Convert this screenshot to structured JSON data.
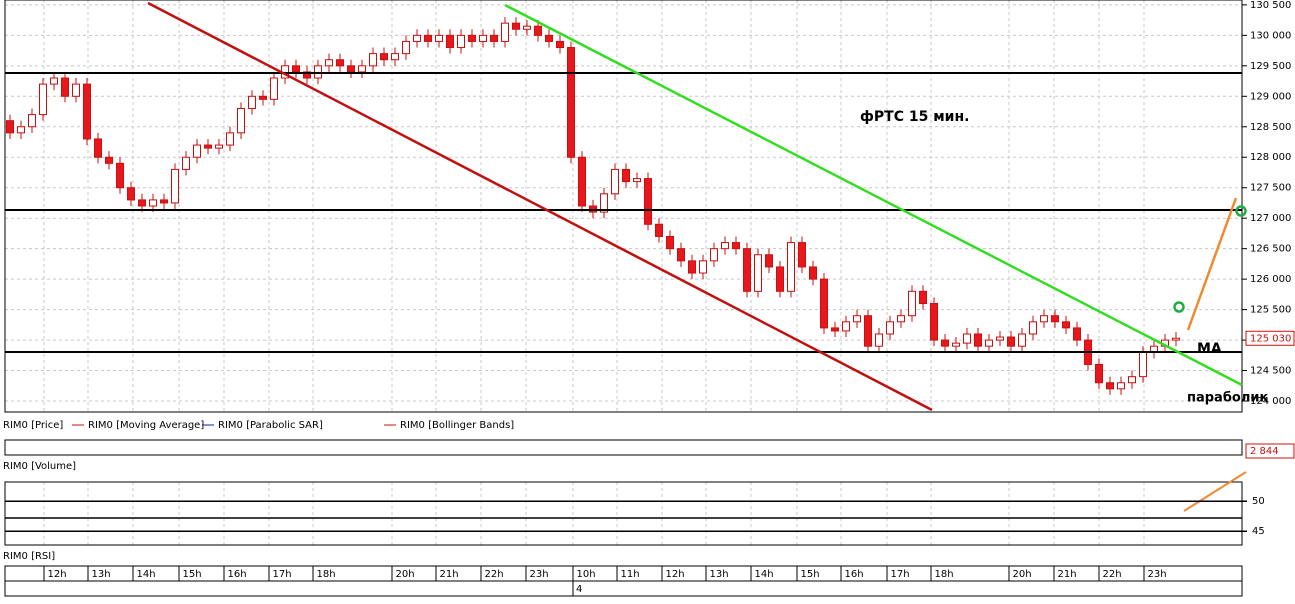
{
  "chart_data": {
    "type": "candlestick",
    "title": "фРТС   15 мин.",
    "open": [
      128600,
      128400,
      128500,
      128700,
      129200,
      129300,
      129000,
      129200,
      128300,
      128000,
      127900,
      127500,
      127300,
      127200,
      127300,
      127250,
      127800,
      128000,
      128200,
      128150,
      128200,
      128400,
      128800,
      129000,
      128950,
      129300,
      129500,
      129400,
      129300,
      129500,
      129600,
      129500,
      129400,
      129500,
      129700,
      129600,
      129700,
      129900,
      130000,
      129900,
      130000,
      129800,
      130000,
      129900,
      130000,
      129900,
      130200,
      130100,
      130150,
      130000,
      129900,
      129800,
      128000,
      127200,
      127100,
      127400,
      127800,
      127600,
      127650,
      126900,
      126700,
      126500,
      126300,
      126100,
      126300,
      126500,
      126600,
      126500,
      125800,
      126400,
      126200,
      125800,
      126600,
      126200,
      126000,
      125200,
      125150,
      125300,
      125400,
      124900,
      125100,
      125300,
      125400,
      125800,
      125600,
      125000,
      124900,
      124950,
      125100,
      124900,
      125000,
      125050,
      124900,
      125100,
      125300,
      125400,
      125300,
      125200,
      125000,
      124600,
      124300,
      124200,
      124300,
      124400,
      124800,
      124900,
      125000
    ],
    "high": [
      128700,
      128600,
      128800,
      129300,
      129400,
      129400,
      129300,
      129300,
      128400,
      128100,
      128000,
      127600,
      127400,
      127400,
      127400,
      127900,
      128100,
      128300,
      128300,
      128300,
      128500,
      128900,
      129100,
      129100,
      129400,
      129600,
      129600,
      129500,
      129600,
      129700,
      129700,
      129600,
      129600,
      129800,
      129800,
      129800,
      130000,
      130100,
      130100,
      130100,
      130100,
      130100,
      130100,
      130100,
      130100,
      130300,
      130300,
      130250,
      130250,
      130100,
      130000,
      129900,
      128100,
      127300,
      127500,
      127900,
      127900,
      127750,
      127750,
      127000,
      126800,
      126600,
      126400,
      126400,
      126600,
      126700,
      126700,
      126600,
      126500,
      126500,
      126300,
      126700,
      126700,
      126300,
      126100,
      125300,
      125400,
      125500,
      125500,
      125200,
      125400,
      125500,
      125900,
      125900,
      125700,
      125100,
      125050,
      125200,
      125200,
      125100,
      125150,
      125150,
      125200,
      125400,
      125500,
      125500,
      125400,
      125300,
      125100,
      124700,
      124400,
      124400,
      124500,
      124900,
      125000,
      125100,
      125130
    ],
    "low": [
      128300,
      128300,
      128400,
      128600,
      129100,
      128900,
      128900,
      128200,
      127900,
      127800,
      127400,
      127200,
      127100,
      127100,
      127150,
      127150,
      127700,
      127900,
      128050,
      128050,
      128100,
      128300,
      128700,
      128850,
      128850,
      129200,
      129300,
      129200,
      129200,
      129400,
      129400,
      129300,
      129300,
      129400,
      129500,
      129500,
      129600,
      129800,
      129800,
      129800,
      129700,
      129700,
      129800,
      129800,
      129800,
      129800,
      130000,
      130000,
      129900,
      129800,
      129700,
      127900,
      127100,
      127000,
      127000,
      127300,
      127500,
      127500,
      126800,
      126600,
      126400,
      126200,
      126000,
      126000,
      126200,
      126400,
      126400,
      125700,
      125700,
      126100,
      125700,
      125700,
      126100,
      125900,
      125100,
      125050,
      125050,
      125200,
      124800,
      124800,
      125000,
      125200,
      125300,
      125500,
      124900,
      124800,
      124800,
      124850,
      124800,
      124800,
      124900,
      124800,
      124800,
      125000,
      125200,
      125200,
      125100,
      124900,
      124500,
      124200,
      124100,
      124100,
      124200,
      124300,
      124700,
      124800,
      124900
    ],
    "close": [
      128400,
      128500,
      128700,
      129200,
      129300,
      129000,
      129200,
      128300,
      128000,
      127900,
      127500,
      127300,
      127200,
      127300,
      127250,
      127800,
      128000,
      128200,
      128150,
      128200,
      128400,
      128800,
      129000,
      128950,
      129300,
      129500,
      129400,
      129300,
      129500,
      129600,
      129500,
      129400,
      129500,
      129700,
      129600,
      129700,
      129900,
      130000,
      129900,
      130000,
      129800,
      130000,
      129900,
      130000,
      129900,
      130200,
      130100,
      130150,
      130000,
      129900,
      129800,
      128000,
      127200,
      127100,
      127400,
      127800,
      127600,
      127650,
      126900,
      126700,
      126500,
      126300,
      126100,
      126300,
      126500,
      126600,
      126500,
      125800,
      126400,
      126200,
      125800,
      126600,
      126200,
      126000,
      125200,
      125150,
      125300,
      125400,
      124900,
      125100,
      125300,
      125400,
      125800,
      125600,
      125000,
      124900,
      124950,
      125100,
      124900,
      125000,
      125050,
      124900,
      125100,
      125300,
      125400,
      125300,
      125200,
      125000,
      124600,
      124300,
      124200,
      124300,
      124400,
      124800,
      124900,
      125000,
      125030
    ],
    "up_color": "#ffffff",
    "down_color": "#e8171b",
    "outline_color": "#c81010",
    "ylim": [
      123820,
      130580
    ],
    "yticks": [
      {
        "value": 124000,
        "label": "124 000"
      },
      {
        "value": 124500,
        "label": "124 500"
      },
      {
        "value": 125000,
        "label": "125 000"
      },
      {
        "value": 125500,
        "label": "125 500"
      },
      {
        "value": 126000,
        "label": "126 000"
      },
      {
        "value": 126500,
        "label": "126 500"
      },
      {
        "value": 127000,
        "label": "127 000"
      },
      {
        "value": 127500,
        "label": "127 500"
      },
      {
        "value": 128000,
        "label": "128 000"
      },
      {
        "value": 128500,
        "label": "128 500"
      },
      {
        "value": 129000,
        "label": "129 000"
      },
      {
        "value": 129500,
        "label": "129 500"
      },
      {
        "value": 130000,
        "label": "130 000"
      },
      {
        "value": 130500,
        "label": "130 500"
      }
    ],
    "grid": true,
    "last_price": {
      "value": 125030,
      "label": "125 030"
    },
    "annotations": [
      "MA",
      "параболик"
    ],
    "legend": [
      "RIM0 [Price]",
      "RIM0 [Moving Average]",
      "RIM0 [Parabolic SAR]",
      "RIM0 [Bollinger Bands]"
    ],
    "time_labels": [
      "12h",
      "13h",
      "14h",
      "15h",
      "16h",
      "17h",
      "18h",
      "20h",
      "21h",
      "22h",
      "23h",
      "10h",
      "11h",
      "12h",
      "13h",
      "14h",
      "15h",
      "16h",
      "17h",
      "18h",
      "20h",
      "21h",
      "22h",
      "23h"
    ],
    "date_label": "4",
    "volume_panel": {
      "label": "RIM0 [Volume]",
      "last_value": {
        "value": 2844,
        "label": "2 844"
      }
    },
    "rsi_panel": {
      "label": "RIM0 [RSI]",
      "ylim": [
        42.7,
        53.2
      ],
      "yticks": [
        50,
        45
      ]
    }
  }
}
